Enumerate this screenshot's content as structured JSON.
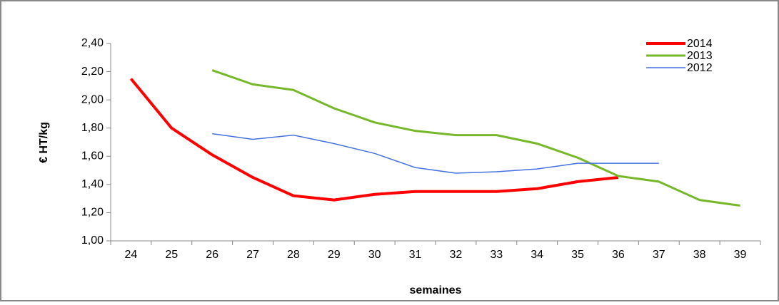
{
  "chart_data": {
    "type": "line",
    "y_label": "€ HT/kg",
    "x_label": "semaines",
    "categories": [
      "24",
      "25",
      "26",
      "27",
      "28",
      "29",
      "30",
      "31",
      "32",
      "33",
      "34",
      "35",
      "36",
      "37",
      "38",
      "39"
    ],
    "ylim": [
      1.0,
      2.4
    ],
    "yticks": [
      {
        "value": 1.0,
        "label": "1,00"
      },
      {
        "value": 1.2,
        "label": "1,20"
      },
      {
        "value": 1.4,
        "label": "1,40"
      },
      {
        "value": 1.6,
        "label": "1,60"
      },
      {
        "value": 1.8,
        "label": "1,80"
      },
      {
        "value": 2.0,
        "label": "2,00"
      },
      {
        "value": 2.2,
        "label": "2,20"
      },
      {
        "value": 2.4,
        "label": "2,40"
      }
    ],
    "grid": false,
    "legend": "top-right",
    "series": [
      {
        "name": "2014",
        "color": "#ff0000",
        "width": 4,
        "values": [
          2.15,
          1.8,
          1.61,
          1.45,
          1.32,
          1.29,
          1.33,
          1.35,
          1.35,
          1.35,
          1.37,
          1.42,
          1.45,
          null,
          null,
          null
        ]
      },
      {
        "name": "2013",
        "color": "#76b82a",
        "width": 3,
        "values": [
          null,
          null,
          2.21,
          2.11,
          2.07,
          1.94,
          1.84,
          1.78,
          1.75,
          1.75,
          1.69,
          1.59,
          1.46,
          1.42,
          1.29,
          1.25
        ]
      },
      {
        "name": "2012",
        "color": "#4472e0",
        "width": 1.5,
        "values": [
          null,
          null,
          1.76,
          1.72,
          1.75,
          1.69,
          1.62,
          1.52,
          1.48,
          1.49,
          1.51,
          1.55,
          1.55,
          1.55,
          null,
          null
        ]
      }
    ]
  }
}
